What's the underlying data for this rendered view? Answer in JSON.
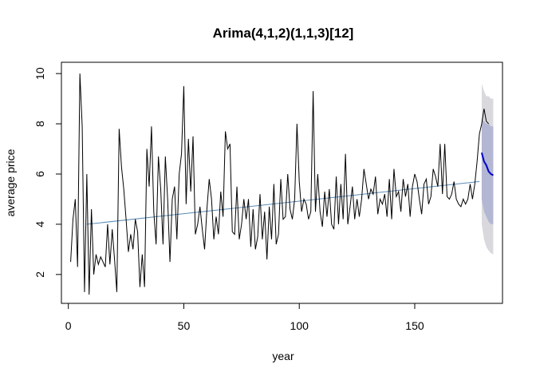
{
  "chart_data": {
    "type": "line",
    "title": "Arima(4,1,2)(1,1,3)[12]",
    "xlabel": "year",
    "ylabel": "average price",
    "xlim": [
      -3,
      188
    ],
    "ylim": [
      0.85,
      10.45
    ],
    "x_ticks": [
      0,
      50,
      100,
      150
    ],
    "y_ticks": [
      2,
      4,
      6,
      8,
      10
    ],
    "grid": false,
    "legend": "none",
    "colors": {
      "observed": "#000000",
      "fitted_trend": "#5b8bb5",
      "forecast": "#0000cc",
      "band_95": "#d9d9dd",
      "band_80": "#b3b7d3"
    },
    "series": [
      {
        "role": "observed",
        "x_start": 1,
        "values": [
          2.5,
          4.2,
          5.0,
          2.3,
          10.0,
          7.9,
          1.3,
          6.0,
          1.2,
          4.6,
          2.0,
          2.8,
          2.4,
          2.7,
          2.5,
          2.3,
          4.0,
          2.4,
          3.8,
          2.6,
          1.3,
          7.8,
          6.3,
          5.4,
          4.2,
          2.9,
          3.6,
          3.0,
          4.2,
          3.7,
          1.5,
          2.8,
          1.5,
          7.0,
          5.5,
          7.9,
          4.5,
          3.2,
          6.7,
          5.4,
          3.2,
          6.7,
          5.0,
          2.5,
          5.0,
          5.5,
          3.4,
          6.0,
          6.8,
          9.5,
          4.8,
          7.4,
          5.3,
          7.5,
          3.6,
          4.0,
          4.7,
          3.8,
          3.0,
          4.6,
          5.8,
          5.0,
          3.4,
          4.3,
          3.6,
          5.3,
          4.3,
          7.7,
          7.0,
          7.2,
          3.7,
          3.6,
          5.5,
          3.4,
          4.0,
          5.0,
          4.2,
          5.0,
          3.1,
          4.6,
          3.0,
          3.5,
          5.2,
          3.4,
          4.5,
          2.6,
          4.7,
          3.4,
          5.6,
          3.2,
          3.6,
          5.8,
          4.2,
          4.3,
          6.0,
          4.6,
          4.2,
          5.0,
          8.0,
          5.7,
          4.5,
          5.0,
          4.8,
          4.2,
          4.5,
          9.3,
          4.5,
          6.0,
          4.5,
          3.9,
          5.3,
          4.3,
          5.4,
          4.0,
          3.8,
          5.9,
          4.0,
          5.6,
          4.2,
          6.8,
          4.0,
          4.7,
          5.5,
          4.2,
          5.0,
          4.3,
          5.0,
          6.2,
          5.6,
          5.0,
          5.4,
          5.2,
          5.9,
          4.4,
          5.0,
          4.8,
          5.2,
          4.3,
          5.8,
          4.2,
          6.2,
          5.1,
          5.3,
          4.5,
          5.8,
          5.1,
          5.6,
          4.3,
          5.5,
          6.0,
          5.7,
          5.0,
          4.4,
          5.6,
          5.8,
          4.8,
          5.1,
          6.2,
          5.9,
          5.5,
          7.2,
          5.2,
          7.2,
          5.1,
          5.0,
          5.2,
          5.7,
          5.0,
          4.8,
          4.7,
          5.0,
          4.8,
          5.0,
          5.6,
          5.0,
          5.6,
          6.5,
          7.6,
          8.0,
          8.6,
          8.1,
          8.0
        ]
      },
      {
        "role": "fitted_trend",
        "x": [
          8,
          178
        ],
        "y": [
          4.0,
          5.7
        ]
      },
      {
        "role": "forecast",
        "x": [
          179,
          180,
          181,
          182,
          183,
          184
        ],
        "y": [
          6.85,
          6.5,
          6.35,
          6.1,
          6.0,
          5.95
        ],
        "lo80": [
          5.0,
          4.5,
          4.3,
          4.1,
          4.0,
          4.0
        ],
        "hi80": [
          8.2,
          8.1,
          8.0,
          8.0,
          7.9,
          7.9
        ],
        "lo95": [
          4.0,
          3.4,
          3.1,
          2.95,
          2.85,
          2.8
        ],
        "hi95": [
          9.6,
          9.3,
          9.1,
          9.1,
          9.0,
          9.0
        ]
      }
    ]
  }
}
